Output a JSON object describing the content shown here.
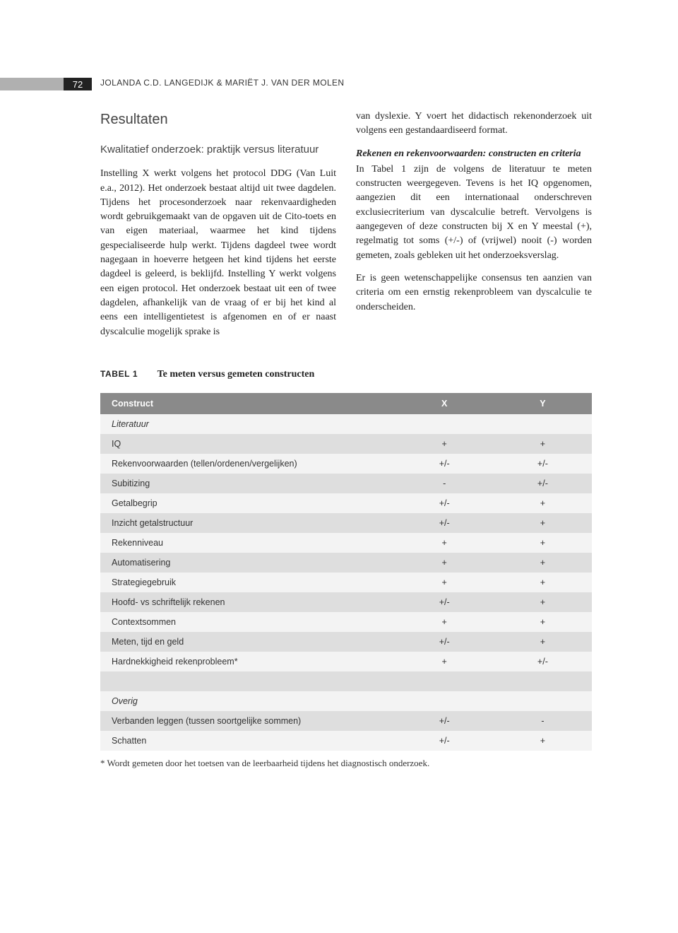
{
  "page_number": "72",
  "running_head": "JOLANDA C.D. LANGEDIJK & MARIËT J. VAN DER MOLEN",
  "section_title": "Resultaten",
  "subsection_title": "Kwalitatief onderzoek: praktijk versus literatuur",
  "col_left_para": "Instelling X werkt volgens het protocol DDG (Van Luit e.a., 2012). Het onderzoek bestaat altijd uit twee dagdelen. Tijdens het procesonderzoek naar rekenvaardigheden wordt gebruikgemaakt van de opgaven uit de Cito-toets en van eigen materiaal, waarmee het kind tijdens gespecialiseerde hulp werkt. Tijdens dagdeel twee wordt nagegaan in hoeverre hetgeen het kind tijdens het eerste dagdeel is geleerd, is beklijfd. Instelling Y werkt volgens een eigen protocol. Het onderzoek bestaat uit een of twee dagdelen, afhankelijk van de vraag of er bij het kind al eens een intelligentietest is afgenomen en of er naast dyscalculie mogelijk sprake is",
  "col_right_para_top": "van dyslexie. Y voert het didactisch rekenonderzoek uit volgens een gestandaardiseerd format.",
  "subsub_title": "Rekenen en rekenvoorwaarden: constructen en criteria",
  "col_right_para_mid": "In Tabel 1 zijn de volgens de literatuur te meten constructen weergegeven. Tevens is het IQ opgenomen, aangezien dit een internationaal onderschreven exclusiecriterium van dyscalculie betreft. Vervolgens is aangegeven of deze constructen bij X en Y meestal (+), regelmatig tot soms (+/-) of (vrijwel) nooit (-) worden gemeten, zoals gebleken uit het onderzoeksverslag.",
  "col_right_para_bot": "Er is geen wetenschappelijke consensus ten aanzien van criteria om een ernstig rekenprobleem van dyscalculie te onderscheiden.",
  "table": {
    "label": "TABEL 1",
    "caption": "Te meten versus gemeten constructen",
    "columns": [
      "Construct",
      "X",
      "Y"
    ],
    "col_widths": [
      "60%",
      "20%",
      "20%"
    ],
    "header_bg": "#8a8a8a",
    "header_color": "#ffffff",
    "row_bg_light": "#f3f3f3",
    "row_bg_dark": "#dedede",
    "rows": [
      {
        "type": "section",
        "label": "Literatuur"
      },
      {
        "cells": [
          "IQ",
          "+",
          "+"
        ]
      },
      {
        "cells": [
          "Rekenvoorwaarden (tellen/ordenen/vergelijken)",
          "+/-",
          "+/-"
        ]
      },
      {
        "cells": [
          "Subitizing",
          "-",
          "+/-"
        ]
      },
      {
        "cells": [
          "Getalbegrip",
          "+/-",
          "+"
        ]
      },
      {
        "cells": [
          "Inzicht getalstructuur",
          "+/-",
          "+"
        ]
      },
      {
        "cells": [
          "Rekenniveau",
          "+",
          "+"
        ]
      },
      {
        "cells": [
          "Automatisering",
          "+",
          "+"
        ]
      },
      {
        "cells": [
          "Strategiegebruik",
          "+",
          "+"
        ]
      },
      {
        "cells": [
          "Hoofd- vs schriftelijk rekenen",
          "+/-",
          "+"
        ]
      },
      {
        "cells": [
          "Contextsommen",
          "+",
          "+"
        ]
      },
      {
        "cells": [
          "Meten, tijd en geld",
          "+/-",
          "+"
        ]
      },
      {
        "cells": [
          "Hardnekkigheid rekenprobleem*",
          "+",
          "+/-"
        ]
      },
      {
        "type": "spacer"
      },
      {
        "type": "section",
        "label": "Overig"
      },
      {
        "cells": [
          "Verbanden leggen (tussen soortgelijke sommen)",
          "+/-",
          "-"
        ]
      },
      {
        "cells": [
          "Schatten",
          "+/-",
          "+"
        ]
      }
    ]
  },
  "footnote": "* Wordt gemeten door het toetsen van de leerbaarheid tijdens het diagnostisch onderzoek."
}
